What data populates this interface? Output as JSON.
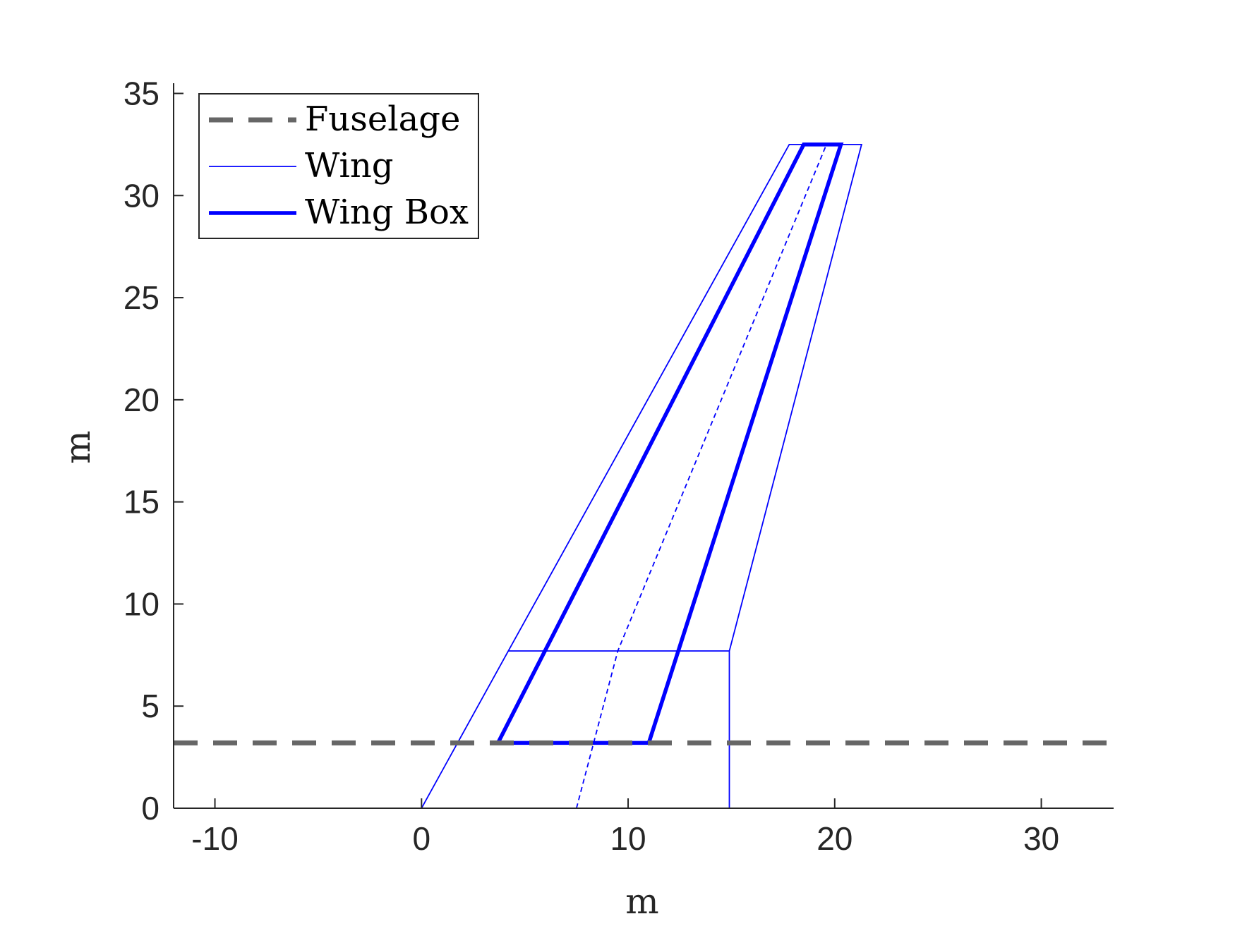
{
  "chart_data": {
    "type": "line",
    "title": "",
    "xlabel": "m",
    "ylabel": "m",
    "xlim": [
      -12,
      33.5
    ],
    "ylim": [
      0,
      35.5
    ],
    "xticks": [
      -10,
      0,
      10,
      20,
      30
    ],
    "yticks": [
      0,
      5,
      10,
      15,
      20,
      25,
      30,
      35
    ],
    "xtick_labels": [
      "-10",
      "0",
      "10",
      "20",
      "30"
    ],
    "ytick_labels": [
      "0",
      "5",
      "10",
      "15",
      "20",
      "25",
      "30",
      "35"
    ],
    "grid": false,
    "legend_position": "top-left",
    "series": [
      {
        "name": "Fuselage",
        "style": "dashed",
        "color": "#666666",
        "x": [
          -12,
          33.5
        ],
        "y": [
          3.2,
          3.2
        ]
      },
      {
        "name": "Wing",
        "style": "thin-solid",
        "color": "#0000ff",
        "x": [
          0,
          4.2,
          17.8,
          21.3,
          14.9,
          14.9,
          0
        ],
        "y": [
          0,
          7.7,
          32.5,
          32.5,
          7.7,
          0,
          0
        ]
      },
      {
        "name": "Wing Box",
        "style": "thick-solid",
        "color": "#0000ff",
        "x": [
          3.7,
          11,
          20.3,
          18.5,
          3.7
        ],
        "y": [
          3.2,
          3.2,
          32.5,
          32.5,
          3.2
        ]
      }
    ],
    "extra_lines": [
      {
        "style": "thin-solid",
        "color": "#0000ff",
        "x": [
          4.2,
          14.9
        ],
        "y": [
          7.7,
          7.7
        ]
      },
      {
        "style": "thin-dashed",
        "color": "#0000ff",
        "x": [
          7.5,
          9.5,
          19.6
        ],
        "y": [
          0,
          7.7,
          32.5
        ]
      }
    ],
    "legend": [
      "Fuselage",
      "Wing",
      "Wing Box"
    ]
  }
}
